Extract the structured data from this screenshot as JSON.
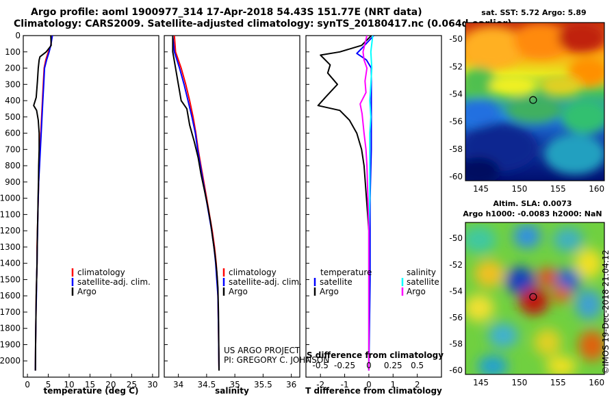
{
  "title_line1": "Argo profile: aoml 1900977_314 17-Apr-2018 54.43S 151.77E (NRT data)",
  "title_line2": "Climatology: CARS2009. Satellite-adjusted climatology: synTS_20180417.nc (0.064d earlier)",
  "credits": [
    "US ARGO PROJECT",
    "PI: GREGORY C. JOHNSON"
  ],
  "imos_stamp": "©IMOS 19-Dec-2018 21:04:12",
  "colors": {
    "argo": "#000000",
    "climatology": "#ff0000",
    "satellite": "#0000ff",
    "salinity_satellite": "#00ffff",
    "salinity_argo": "#ff00ff"
  },
  "chart_data": [
    {
      "type": "line",
      "id": "temperature",
      "xlabel": "temperature (deg C)",
      "ylabel": "",
      "xlim": [
        -1,
        31.5
      ],
      "ylim": [
        2100,
        0
      ],
      "xticks": [
        0,
        5,
        10,
        15,
        20,
        25,
        30
      ],
      "yticks": [
        0,
        100,
        200,
        300,
        400,
        500,
        600,
        700,
        800,
        900,
        1000,
        1100,
        1200,
        1300,
        1400,
        1500,
        1600,
        1700,
        1800,
        1900,
        2000
      ],
      "legend": [
        "climatology",
        "satellite-adj. clim.",
        "Argo"
      ],
      "series": [
        {
          "name": "climatology",
          "color": "#ff0000",
          "points": [
            [
              5.8,
              0
            ],
            [
              5.6,
              60
            ],
            [
              5.0,
              100
            ],
            [
              4.4,
              150
            ],
            [
              4.0,
              200
            ],
            [
              3.8,
              300
            ],
            [
              3.6,
              400
            ],
            [
              3.4,
              500
            ],
            [
              3.2,
              600
            ],
            [
              3.0,
              700
            ],
            [
              2.8,
              800
            ],
            [
              2.7,
              900
            ],
            [
              2.6,
              1000
            ],
            [
              2.5,
              1100
            ],
            [
              2.4,
              1200
            ],
            [
              2.3,
              1300
            ],
            [
              2.3,
              1400
            ],
            [
              2.2,
              1500
            ],
            [
              2.1,
              1600
            ],
            [
              2.05,
              1700
            ],
            [
              2.0,
              1800
            ],
            [
              1.95,
              1900
            ],
            [
              1.9,
              2060
            ]
          ]
        },
        {
          "name": "satellite-adj. clim.",
          "color": "#0000ff",
          "points": [
            [
              6.0,
              0
            ],
            [
              5.8,
              30
            ],
            [
              5.6,
              60
            ],
            [
              5.2,
              100
            ],
            [
              4.6,
              150
            ],
            [
              4.1,
              200
            ],
            [
              3.9,
              300
            ],
            [
              3.7,
              400
            ],
            [
              3.5,
              500
            ],
            [
              3.3,
              600
            ],
            [
              3.1,
              700
            ],
            [
              2.9,
              800
            ],
            [
              2.7,
              900
            ],
            [
              2.6,
              1000
            ],
            [
              2.5,
              1100
            ],
            [
              2.45,
              1200
            ],
            [
              2.35,
              1300
            ],
            [
              2.3,
              1400
            ],
            [
              2.2,
              1500
            ],
            [
              2.15,
              1600
            ],
            [
              2.05,
              1700
            ],
            [
              2.0,
              1800
            ],
            [
              1.95,
              1900
            ],
            [
              1.9,
              2060
            ]
          ]
        },
        {
          "name": "Argo",
          "color": "#000000",
          "points": [
            [
              5.6,
              0
            ],
            [
              5.7,
              60
            ],
            [
              4.5,
              100
            ],
            [
              3.0,
              130
            ],
            [
              2.8,
              150
            ],
            [
              2.6,
              200
            ],
            [
              2.4,
              280
            ],
            [
              2.1,
              380
            ],
            [
              1.5,
              430
            ],
            [
              2.2,
              460
            ],
            [
              2.6,
              520
            ],
            [
              2.8,
              600
            ],
            [
              2.8,
              700
            ],
            [
              2.7,
              800
            ],
            [
              2.65,
              900
            ],
            [
              2.55,
              1000
            ],
            [
              2.5,
              1100
            ],
            [
              2.4,
              1200
            ],
            [
              2.35,
              1300
            ],
            [
              2.3,
              1400
            ],
            [
              2.2,
              1500
            ],
            [
              2.1,
              1600
            ],
            [
              2.05,
              1700
            ],
            [
              2.0,
              1800
            ],
            [
              1.95,
              1900
            ],
            [
              1.9,
              2060
            ]
          ]
        }
      ]
    },
    {
      "type": "line",
      "id": "salinity",
      "xlabel": "salinity",
      "ylabel": "",
      "xlim": [
        33.75,
        36.15
      ],
      "ylim": [
        2100,
        0
      ],
      "xticks": [
        34,
        34.5,
        35,
        35.5,
        36
      ],
      "legend": [
        "climatology",
        "satellite-adj. clim.",
        "Argo"
      ],
      "series": [
        {
          "name": "climatology",
          "color": "#ff0000",
          "points": [
            [
              33.93,
              0
            ],
            [
              33.95,
              100
            ],
            [
              34.05,
              200
            ],
            [
              34.13,
              300
            ],
            [
              34.2,
              400
            ],
            [
              34.26,
              500
            ],
            [
              34.31,
              600
            ],
            [
              34.35,
              700
            ],
            [
              34.4,
              800
            ],
            [
              34.45,
              900
            ],
            [
              34.5,
              1000
            ],
            [
              34.55,
              1100
            ],
            [
              34.6,
              1200
            ],
            [
              34.64,
              1300
            ],
            [
              34.67,
              1400
            ],
            [
              34.69,
              1500
            ],
            [
              34.7,
              1600
            ],
            [
              34.71,
              1800
            ],
            [
              34.72,
              2060
            ]
          ]
        },
        {
          "name": "satellite-adj. clim.",
          "color": "#0000ff",
          "points": [
            [
              33.9,
              0
            ],
            [
              33.93,
              100
            ],
            [
              34.02,
              200
            ],
            [
              34.1,
              300
            ],
            [
              34.17,
              400
            ],
            [
              34.24,
              500
            ],
            [
              34.3,
              600
            ],
            [
              34.34,
              700
            ],
            [
              34.39,
              800
            ],
            [
              34.44,
              900
            ],
            [
              34.49,
              1000
            ],
            [
              34.54,
              1100
            ],
            [
              34.59,
              1200
            ],
            [
              34.63,
              1300
            ],
            [
              34.66,
              1400
            ],
            [
              34.68,
              1500
            ],
            [
              34.7,
              1600
            ],
            [
              34.71,
              1800
            ],
            [
              34.72,
              2060
            ]
          ]
        },
        {
          "name": "Argo",
          "color": "#000000",
          "points": [
            [
              33.9,
              0
            ],
            [
              33.9,
              100
            ],
            [
              33.95,
              200
            ],
            [
              34.0,
              300
            ],
            [
              34.05,
              400
            ],
            [
              34.15,
              450
            ],
            [
              34.2,
              550
            ],
            [
              34.28,
              650
            ],
            [
              34.35,
              750
            ],
            [
              34.4,
              850
            ],
            [
              34.46,
              950
            ],
            [
              34.52,
              1050
            ],
            [
              34.57,
              1150
            ],
            [
              34.61,
              1250
            ],
            [
              34.65,
              1350
            ],
            [
              34.68,
              1450
            ],
            [
              34.7,
              1550
            ],
            [
              34.71,
              1700
            ],
            [
              34.72,
              2060
            ]
          ]
        }
      ]
    },
    {
      "type": "line",
      "id": "difference",
      "xlabel": "T difference from climatology",
      "xlabel_top": "S difference from climatology",
      "ylabel": "",
      "xlim": [
        -2.6,
        3.0
      ],
      "ylim": [
        2100,
        0
      ],
      "xticks": [
        -2,
        -1,
        0,
        1,
        2
      ],
      "xticks_s": [
        -0.5,
        -0.25,
        0,
        0.25,
        0.5
      ],
      "legend_temperature": {
        "title": "temperature",
        "items": [
          "satellite",
          "Argo"
        ]
      },
      "legend_salinity": {
        "title": "salinity",
        "items": [
          "satellite",
          "Argo"
        ]
      },
      "series": [
        {
          "name": "temperature satellite",
          "color": "#0000ff",
          "points": [
            [
              0.2,
              0
            ],
            [
              -0.3,
              80
            ],
            [
              -0.5,
              110
            ],
            [
              -0.1,
              150
            ],
            [
              0.1,
              200
            ],
            [
              0.1,
              300
            ],
            [
              0.1,
              400
            ],
            [
              0.1,
              500
            ],
            [
              0.1,
              700
            ],
            [
              0.05,
              1000
            ],
            [
              0.05,
              1500
            ],
            [
              0.0,
              2060
            ]
          ]
        },
        {
          "name": "temperature Argo",
          "color": "#000000",
          "points": [
            [
              0.1,
              0
            ],
            [
              -0.3,
              60
            ],
            [
              -1.2,
              100
            ],
            [
              -2.0,
              120
            ],
            [
              -1.6,
              180
            ],
            [
              -1.7,
              230
            ],
            [
              -1.3,
              300
            ],
            [
              -1.8,
              380
            ],
            [
              -2.1,
              430
            ],
            [
              -1.2,
              460
            ],
            [
              -0.8,
              520
            ],
            [
              -0.5,
              600
            ],
            [
              -0.3,
              700
            ],
            [
              -0.2,
              800
            ],
            [
              -0.1,
              1000
            ],
            [
              0.0,
              1200
            ],
            [
              0.0,
              1500
            ],
            [
              0.0,
              2060
            ]
          ]
        },
        {
          "name": "salinity satellite",
          "color": "#00ffff",
          "points": [
            [
              0.04,
              0
            ],
            [
              0.02,
              100
            ],
            [
              0.03,
              200
            ],
            [
              0.02,
              300
            ],
            [
              0.01,
              400
            ],
            [
              0.02,
              500
            ],
            [
              0.01,
              600
            ],
            [
              0.01,
              800
            ],
            [
              0.01,
              1000
            ],
            [
              0.0,
              1200
            ],
            [
              0.0,
              1500
            ],
            [
              0.0,
              2060
            ]
          ]
        },
        {
          "name": "salinity Argo",
          "color": "#ff00ff",
          "points": [
            [
              -0.02,
              0
            ],
            [
              -0.06,
              100
            ],
            [
              -0.05,
              150
            ],
            [
              -0.02,
              200
            ],
            [
              -0.04,
              280
            ],
            [
              -0.03,
              350
            ],
            [
              -0.09,
              420
            ],
            [
              -0.07,
              480
            ],
            [
              -0.05,
              600
            ],
            [
              -0.03,
              700
            ],
            [
              -0.02,
              800
            ],
            [
              -0.01,
              1000
            ],
            [
              0.0,
              1200
            ],
            [
              0.0,
              1500
            ],
            [
              0.0,
              2060
            ]
          ]
        }
      ]
    },
    {
      "type": "heatmap",
      "id": "sst-map",
      "title": "sat. SST: 5.72 Argo: 5.89",
      "xlim": [
        143,
        161
      ],
      "ylim": [
        -60.3,
        -48.8
      ],
      "xticks": [
        145,
        150,
        155,
        160
      ],
      "yticks": [
        -50,
        -52,
        -54,
        -56,
        -58,
        -60
      ],
      "marker": {
        "lon": 151.77,
        "lat": -54.43
      }
    },
    {
      "type": "heatmap",
      "id": "sla-map",
      "title_line1": "Altim. SLA: 0.0073",
      "title_line2": "Argo h1000: -0.0083 h2000: NaN",
      "xlim": [
        143,
        161
      ],
      "ylim": [
        -60.3,
        -48.8
      ],
      "xticks": [
        145,
        150,
        155,
        160
      ],
      "yticks": [
        -50,
        -52,
        -54,
        -56,
        -58,
        -60
      ],
      "marker": {
        "lon": 151.77,
        "lat": -54.43
      }
    }
  ]
}
